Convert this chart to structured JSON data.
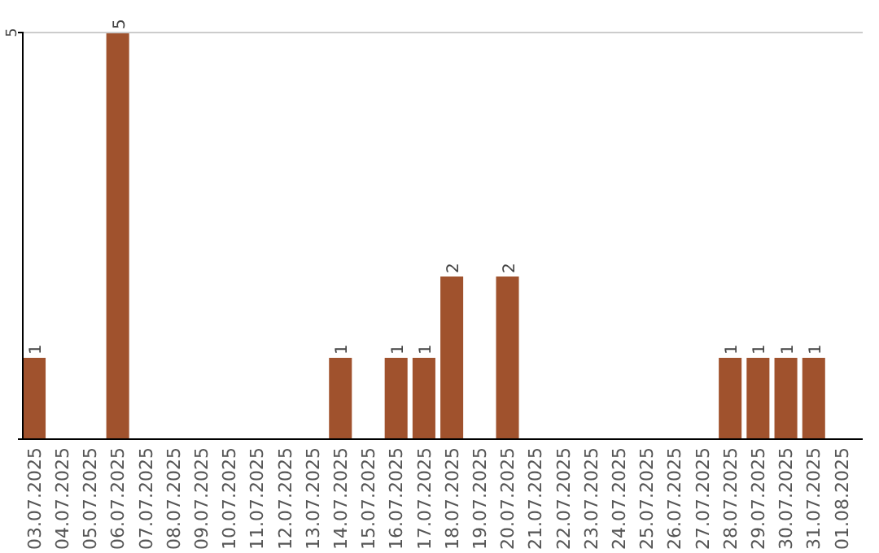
{
  "chart_data": {
    "type": "bar",
    "categories": [
      "03.07.2025",
      "04.07.2025",
      "05.07.2025",
      "06.07.2025",
      "07.07.2025",
      "08.07.2025",
      "09.07.2025",
      "10.07.2025",
      "11.07.2025",
      "12.07.2025",
      "13.07.2025",
      "14.07.2025",
      "15.07.2025",
      "16.07.2025",
      "17.07.2025",
      "18.07.2025",
      "19.07.2025",
      "20.07.2025",
      "21.07.2025",
      "22.07.2025",
      "23.07.2025",
      "24.07.2025",
      "25.07.2025",
      "26.07.2025",
      "27.07.2025",
      "28.07.2025",
      "29.07.2025",
      "30.07.2025",
      "31.07.2025",
      "01.08.2025"
    ],
    "values": [
      1,
      0,
      0,
      5,
      0,
      0,
      0,
      0,
      0,
      0,
      0,
      1,
      0,
      1,
      1,
      2,
      0,
      2,
      0,
      0,
      0,
      0,
      0,
      0,
      0,
      1,
      1,
      1,
      1,
      0
    ],
    "value_labels": [
      "1",
      null,
      null,
      "5",
      null,
      null,
      null,
      null,
      null,
      null,
      null,
      "1",
      null,
      "1",
      "1",
      "2",
      null,
      "2",
      null,
      null,
      null,
      null,
      null,
      null,
      null,
      "1",
      "1",
      "1",
      "1",
      null
    ],
    "color": "#a0522d",
    "ylim": [
      0,
      5
    ],
    "yticks": [
      5
    ],
    "ref_lines": [
      {
        "axis": "y",
        "value": 5,
        "color": "#cccccc"
      }
    ]
  }
}
